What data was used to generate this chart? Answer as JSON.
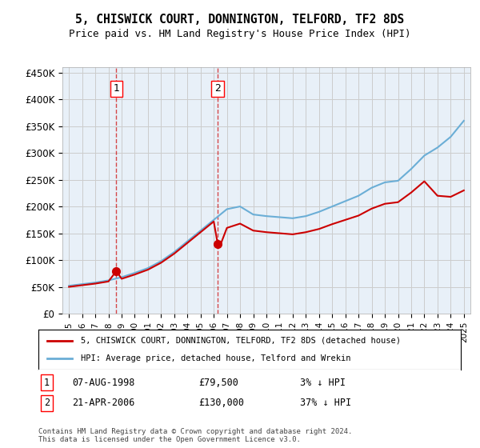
{
  "title1": "5, CHISWICK COURT, DONNINGTON, TELFORD, TF2 8DS",
  "title2": "Price paid vs. HM Land Registry's House Price Index (HPI)",
  "legend_line1": "5, CHISWICK COURT, DONNINGTON, TELFORD, TF2 8DS (detached house)",
  "legend_line2": "HPI: Average price, detached house, Telford and Wrekin",
  "footer": "Contains HM Land Registry data © Crown copyright and database right 2024.\nThis data is licensed under the Open Government Licence v3.0.",
  "sale1_date": "07-AUG-1998",
  "sale1_price": 79500,
  "sale1_hpi_pct": "3% ↓ HPI",
  "sale2_date": "21-APR-2006",
  "sale2_price": 130000,
  "sale2_hpi_pct": "37% ↓ HPI",
  "sale1_year": 1998.6,
  "sale2_year": 2006.3,
  "hpi_color": "#6baed6",
  "red_color": "#cc0000",
  "marker_color": "#cc0000",
  "background_color": "#ffffff",
  "grid_color": "#cccccc",
  "hpi_years": [
    1995,
    1996,
    1997,
    1998,
    1999,
    2000,
    2001,
    2002,
    2003,
    2004,
    2005,
    2006,
    2007,
    2008,
    2009,
    2010,
    2011,
    2012,
    2013,
    2014,
    2015,
    2016,
    2017,
    2018,
    2019,
    2020,
    2021,
    2022,
    2023,
    2024,
    2025
  ],
  "hpi_values": [
    52000,
    55000,
    58000,
    62000,
    68000,
    76000,
    85000,
    98000,
    115000,
    135000,
    155000,
    175000,
    195000,
    200000,
    185000,
    182000,
    180000,
    178000,
    182000,
    190000,
    200000,
    210000,
    220000,
    235000,
    245000,
    248000,
    270000,
    295000,
    310000,
    330000,
    360000
  ],
  "red_years": [
    1995,
    1996,
    1997,
    1998,
    1998.6,
    1999,
    2000,
    2001,
    2002,
    2003,
    2004,
    2005,
    2006,
    2006.3,
    2006.5,
    2007,
    2008,
    2009,
    2010,
    2011,
    2012,
    2013,
    2014,
    2015,
    2016,
    2017,
    2018,
    2019,
    2020,
    2021,
    2022,
    2023,
    2024,
    2025
  ],
  "red_values": [
    50000,
    53000,
    56000,
    60000,
    79500,
    65000,
    73000,
    82000,
    95000,
    112000,
    132000,
    152000,
    172000,
    130000,
    128000,
    160000,
    168000,
    155000,
    152000,
    150000,
    148000,
    152000,
    158000,
    167000,
    175000,
    183000,
    196000,
    205000,
    208000,
    226000,
    247000,
    220000,
    218000,
    230000
  ],
  "ylim": [
    0,
    460000
  ],
  "yticks": [
    0,
    50000,
    100000,
    150000,
    200000,
    250000,
    300000,
    350000,
    400000,
    450000
  ],
  "xlim": [
    1994.5,
    2025.5
  ],
  "xticks": [
    1995,
    1996,
    1997,
    1998,
    1999,
    2000,
    2001,
    2002,
    2003,
    2004,
    2005,
    2006,
    2007,
    2008,
    2009,
    2010,
    2011,
    2012,
    2013,
    2014,
    2015,
    2016,
    2017,
    2018,
    2019,
    2020,
    2021,
    2022,
    2023,
    2024,
    2025
  ]
}
